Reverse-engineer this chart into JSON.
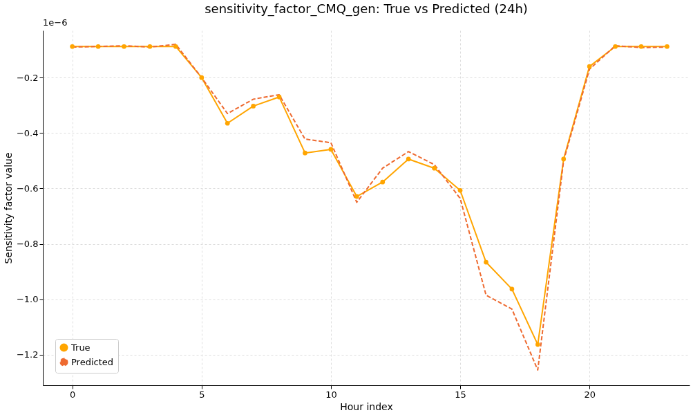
{
  "chart_data": {
    "type": "line",
    "title": "sensitivity_factor_CMQ_gen: True vs Predicted (24h)",
    "xlabel": "Hour index",
    "ylabel": "Sensitivity factor value",
    "annotations": [
      "1e−6"
    ],
    "x": [
      0,
      1,
      2,
      3,
      4,
      5,
      6,
      7,
      8,
      9,
      10,
      11,
      12,
      13,
      14,
      15,
      16,
      17,
      18,
      19,
      20,
      21,
      22,
      23
    ],
    "series": [
      {
        "name": "True",
        "color": "#ffa500",
        "marker": "circle",
        "line_style": "solid",
        "values": [
          -0.088,
          -0.088,
          -0.088,
          -0.088,
          -0.088,
          -0.2,
          -0.365,
          -0.303,
          -0.27,
          -0.472,
          -0.459,
          -0.629,
          -0.577,
          -0.494,
          -0.527,
          -0.607,
          -0.866,
          -0.963,
          -1.163,
          -0.494,
          -0.16,
          -0.088,
          -0.088,
          -0.088
        ]
      },
      {
        "name": "Predicted",
        "color": "#ee6a30",
        "marker": "none",
        "line_style": "dashed",
        "values": [
          -0.09,
          -0.088,
          -0.085,
          -0.09,
          -0.08,
          -0.2,
          -0.33,
          -0.278,
          -0.262,
          -0.422,
          -0.435,
          -0.65,
          -0.527,
          -0.467,
          -0.514,
          -0.636,
          -0.985,
          -1.035,
          -1.255,
          -0.5,
          -0.17,
          -0.085,
          -0.092,
          -0.09
        ]
      }
    ],
    "xlim": [
      -1.14,
      23.87
    ],
    "ylim": [
      -1.31,
      -0.03
    ],
    "xticks": [
      0,
      5,
      10,
      15,
      20
    ],
    "yticks": [
      {
        "value": -1.2,
        "label": "−1.2"
      },
      {
        "value": -1.0,
        "label": "−1.0"
      },
      {
        "value": -0.8,
        "label": "−0.8"
      },
      {
        "value": -0.6,
        "label": "−0.6"
      },
      {
        "value": -0.4,
        "label": "−0.4"
      },
      {
        "value": -0.2,
        "label": "−0.2"
      }
    ],
    "grid": true,
    "legend": "bottom left"
  }
}
